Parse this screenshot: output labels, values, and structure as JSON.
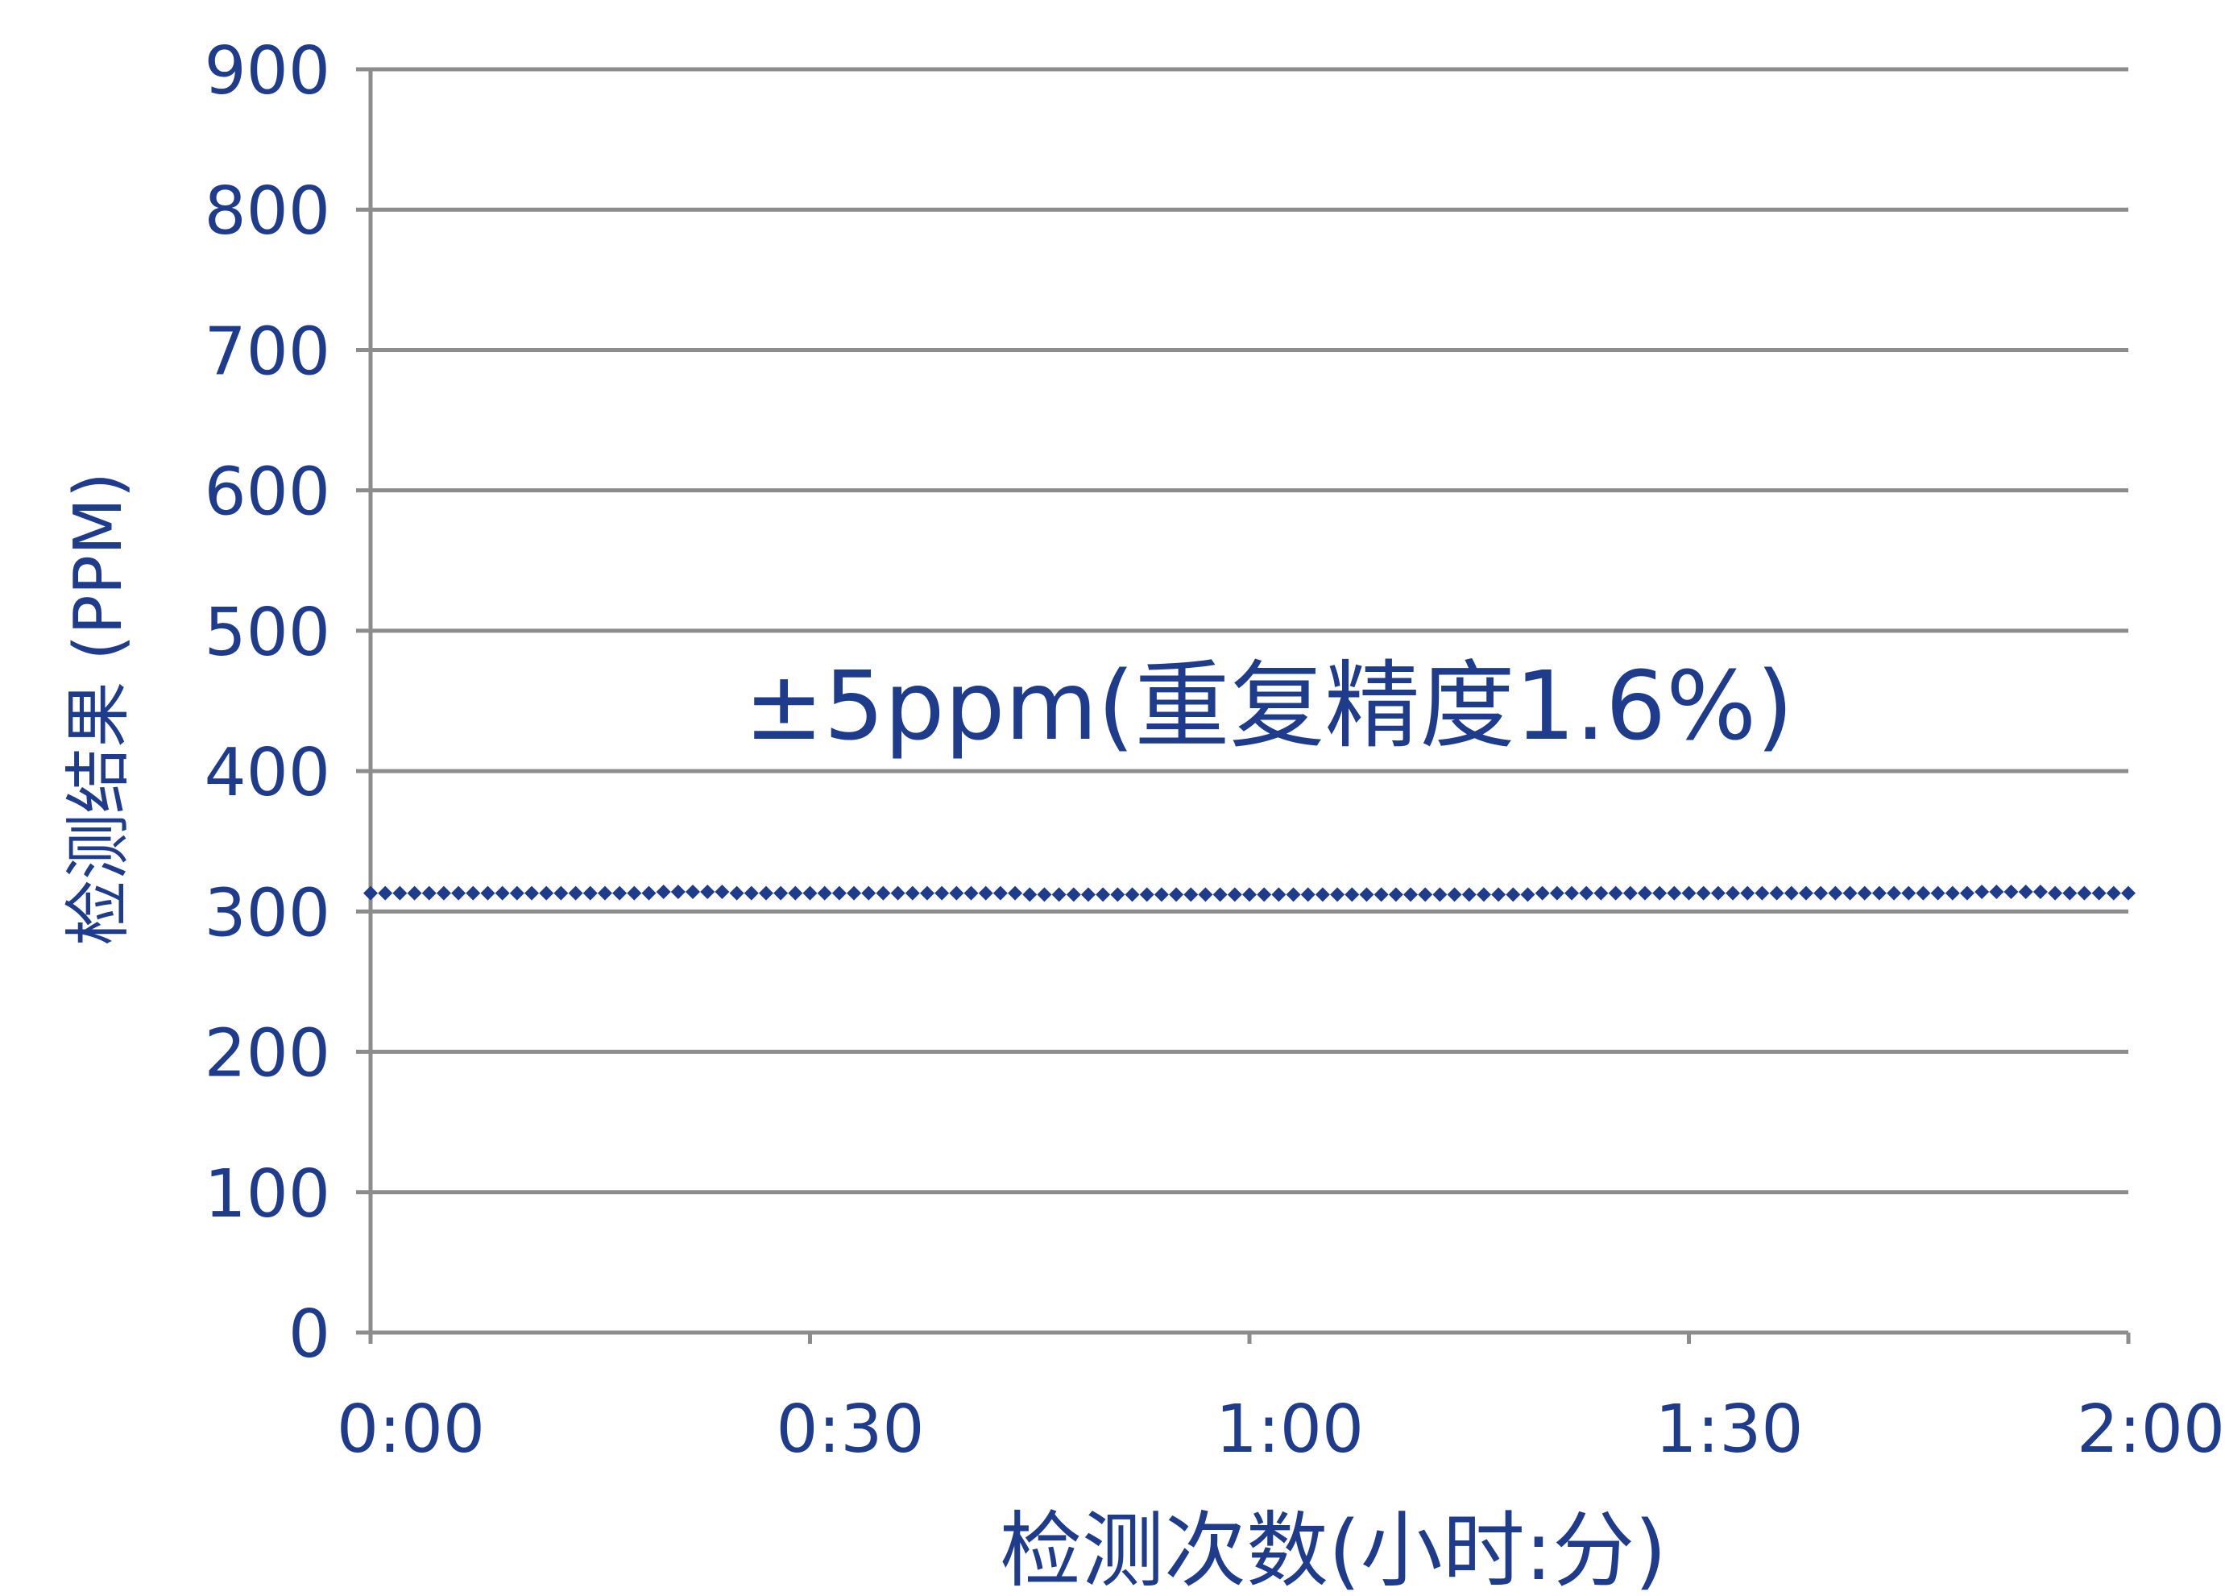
{
  "colors": {
    "text": "#1f3c8c",
    "series": "#1f3c8c",
    "grid": "#8c8c8c",
    "background": "#ffffff"
  },
  "chart_data": {
    "type": "scatter",
    "title": "",
    "xlabel": "检测次数(小时:分)",
    "ylabel": "检测结果 (PPM)",
    "annotation": "±5ppm(重复精度1.6%)",
    "xlim": [
      0,
      120
    ],
    "ylim": [
      0,
      900
    ],
    "x_ticks": [
      0,
      30,
      60,
      90,
      120
    ],
    "x_tick_labels": [
      "0:00",
      "0:30",
      "1:00",
      "1:30",
      "2:00"
    ],
    "y_ticks": [
      0,
      100,
      200,
      300,
      400,
      500,
      600,
      700,
      800,
      900
    ],
    "y_tick_labels": [
      "0",
      "100",
      "200",
      "300",
      "400",
      "500",
      "600",
      "700",
      "800",
      "900"
    ],
    "grid": "horizontal",
    "marker": "diamond",
    "series": [
      {
        "sampling_interval_min": 1,
        "x": [
          0,
          1,
          2,
          3,
          4,
          5,
          6,
          7,
          8,
          9,
          10,
          11,
          12,
          13,
          14,
          15,
          16,
          17,
          18,
          19,
          20,
          21,
          22,
          23,
          24,
          25,
          26,
          27,
          28,
          29,
          30,
          31,
          32,
          33,
          34,
          35,
          36,
          37,
          38,
          39,
          40,
          41,
          42,
          43,
          44,
          45,
          46,
          47,
          48,
          49,
          50,
          51,
          52,
          53,
          54,
          55,
          56,
          57,
          58,
          59,
          60,
          61,
          62,
          63,
          64,
          65,
          66,
          67,
          68,
          69,
          70,
          71,
          72,
          73,
          74,
          75,
          76,
          77,
          78,
          79,
          80,
          81,
          82,
          83,
          84,
          85,
          86,
          87,
          88,
          89,
          90,
          91,
          92,
          93,
          94,
          95,
          96,
          97,
          98,
          99,
          100,
          101,
          102,
          103,
          104,
          105,
          106,
          107,
          108,
          109,
          110,
          111,
          112,
          113,
          114,
          115,
          116,
          117,
          118,
          119,
          120
        ],
        "y": [
          313,
          313,
          313,
          313,
          313,
          313,
          313,
          313,
          313,
          313,
          313,
          313,
          313,
          313,
          313,
          313,
          313,
          313,
          313,
          313,
          314,
          314,
          314,
          314,
          314,
          313,
          313,
          313,
          313,
          313,
          313,
          313,
          313,
          313,
          313,
          313,
          313,
          313,
          313,
          313,
          313,
          313,
          313,
          313,
          313,
          312,
          312,
          312,
          312,
          312,
          312,
          312,
          312,
          312,
          312,
          312,
          312,
          312,
          312,
          312,
          312,
          312,
          312,
          312,
          312,
          312,
          312,
          312,
          312,
          312,
          312,
          312,
          312,
          312,
          312,
          312,
          312,
          312,
          312,
          312,
          313,
          313,
          313,
          313,
          313,
          313,
          313,
          313,
          313,
          313,
          313,
          313,
          313,
          313,
          313,
          313,
          313,
          313,
          313,
          313,
          313,
          313,
          313,
          313,
          313,
          313,
          313,
          313,
          313,
          313,
          314,
          314,
          314,
          314,
          314,
          313,
          313,
          313,
          313,
          313,
          313
        ]
      }
    ]
  }
}
